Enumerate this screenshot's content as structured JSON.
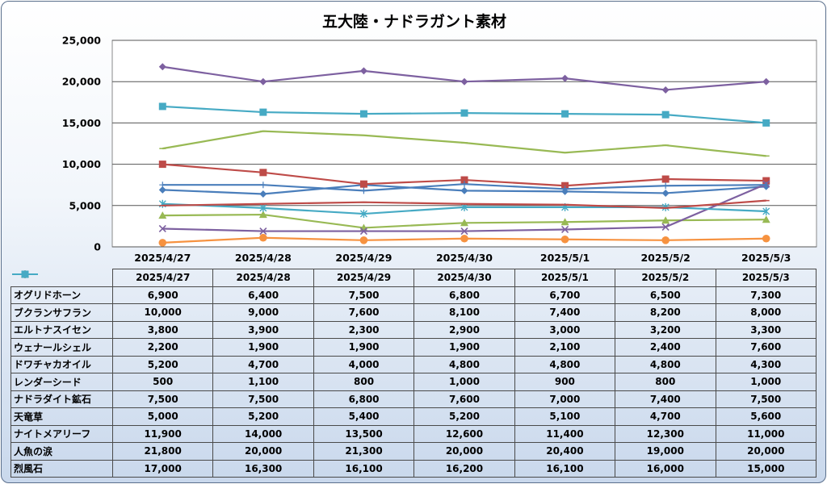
{
  "chart_data": {
    "type": "line",
    "title": "五大陸・ナドラガント素材",
    "xlabel": "",
    "ylabel": "",
    "ylim": [
      0,
      25000
    ],
    "yticks": [
      0,
      5000,
      10000,
      15000,
      20000,
      25000
    ],
    "ytick_labels": [
      "0",
      "5,000",
      "10,000",
      "15,000",
      "20,000",
      "25,000"
    ],
    "categories": [
      "2025/4/27",
      "2025/4/28",
      "2025/4/29",
      "2025/4/30",
      "2025/5/1",
      "2025/5/2",
      "2025/5/3"
    ],
    "grid": "horizontal",
    "legend": "data-table",
    "series": [
      {
        "name": "オグリドホーン",
        "color": "#4a7ebb",
        "marker": "diamond",
        "values": [
          6900,
          6400,
          7500,
          6800,
          6700,
          6500,
          7300
        ],
        "labels": [
          "6,900",
          "6,400",
          "7,500",
          "6,800",
          "6,700",
          "6,500",
          "7,300"
        ]
      },
      {
        "name": "ブクランサフラン",
        "color": "#be4b48",
        "marker": "square",
        "values": [
          10000,
          9000,
          7600,
          8100,
          7400,
          8200,
          8000
        ],
        "labels": [
          "10,000",
          "9,000",
          "7,600",
          "8,100",
          "7,400",
          "8,200",
          "8,000"
        ]
      },
      {
        "name": "エルトナスイセン",
        "color": "#98b954",
        "marker": "triangle",
        "values": [
          3800,
          3900,
          2300,
          2900,
          3000,
          3200,
          3300
        ],
        "labels": [
          "3,800",
          "3,900",
          "2,300",
          "2,900",
          "3,000",
          "3,200",
          "3,300"
        ]
      },
      {
        "name": "ウェナールシェル",
        "color": "#7d60a0",
        "marker": "x",
        "values": [
          2200,
          1900,
          1900,
          1900,
          2100,
          2400,
          7600
        ],
        "labels": [
          "2,200",
          "1,900",
          "1,900",
          "1,900",
          "2,100",
          "2,400",
          "7,600"
        ]
      },
      {
        "name": "ドワチャカオイル",
        "color": "#46aac4",
        "marker": "star",
        "values": [
          5200,
          4700,
          4000,
          4800,
          4800,
          4800,
          4300
        ],
        "labels": [
          "5,200",
          "4,700",
          "4,000",
          "4,800",
          "4,800",
          "4,800",
          "4,300"
        ]
      },
      {
        "name": "レンダーシード",
        "color": "#f69240",
        "marker": "circle",
        "values": [
          500,
          1100,
          800,
          1000,
          900,
          800,
          1000
        ],
        "labels": [
          "500",
          "1,100",
          "800",
          "1,000",
          "900",
          "800",
          "1,000"
        ]
      },
      {
        "name": "ナドラダイト鉱石",
        "color": "#4a7ebb",
        "marker": "plus",
        "values": [
          7500,
          7500,
          6800,
          7600,
          7000,
          7400,
          7500
        ],
        "labels": [
          "7,500",
          "7,500",
          "6,800",
          "7,600",
          "7,000",
          "7,400",
          "7,500"
        ]
      },
      {
        "name": "天竜草",
        "color": "#be4b48",
        "marker": "dash",
        "values": [
          5000,
          5200,
          5400,
          5200,
          5100,
          4700,
          5600
        ],
        "labels": [
          "5,000",
          "5,200",
          "5,400",
          "5,200",
          "5,100",
          "4,700",
          "5,600"
        ]
      },
      {
        "name": "ナイトメアリーフ",
        "color": "#98b954",
        "marker": "dash",
        "values": [
          11900,
          14000,
          13500,
          12600,
          11400,
          12300,
          11000
        ],
        "labels": [
          "11,900",
          "14,000",
          "13,500",
          "12,600",
          "11,400",
          "12,300",
          "11,000"
        ]
      },
      {
        "name": "人魚の涙",
        "color": "#7d60a0",
        "marker": "diamond",
        "values": [
          21800,
          20000,
          21300,
          20000,
          20400,
          19000,
          20000
        ],
        "labels": [
          "21,800",
          "20,000",
          "21,300",
          "20,000",
          "20,400",
          "19,000",
          "20,000"
        ]
      },
      {
        "name": "烈風石",
        "color": "#46aac4",
        "marker": "square",
        "values": [
          17000,
          16300,
          16100,
          16200,
          16100,
          16000,
          15000
        ],
        "labels": [
          "17,000",
          "16,300",
          "16,100",
          "16,200",
          "16,100",
          "16,000",
          "15,000"
        ]
      }
    ]
  }
}
